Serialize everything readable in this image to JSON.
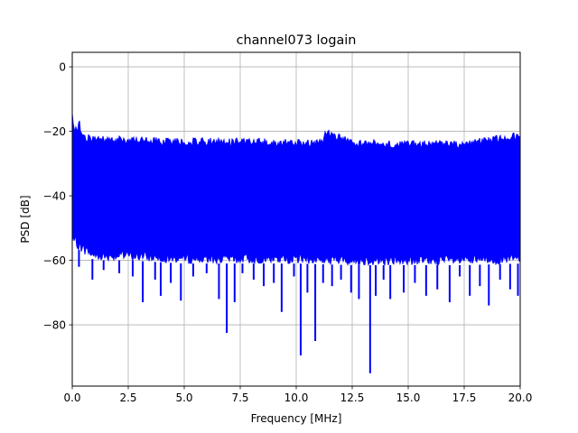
{
  "chart_data": {
    "type": "line",
    "title": "channel073 logain",
    "xlabel": "Frequency [MHz]",
    "ylabel": "PSD [dB]",
    "xlim": [
      0,
      20
    ],
    "ylim": [
      -99,
      4.5
    ],
    "x_ticks": [
      0,
      2.5,
      5,
      7.5,
      10,
      12.5,
      15,
      17.5,
      20
    ],
    "x_tick_labels": [
      "0.0",
      "2.5",
      "5.0",
      "7.5",
      "10.0",
      "12.5",
      "15.0",
      "17.5",
      "20.0"
    ],
    "y_ticks": [
      0,
      -20,
      -40,
      -60,
      -80
    ],
    "y_tick_labels": [
      "0",
      "−20",
      "−40",
      "−60",
      "−80"
    ],
    "grid": true,
    "series": [
      {
        "color": "#0000ff",
        "envelope_upper": {
          "x": [
            0,
            0.05,
            0.2,
            0.3,
            0.5,
            1,
            2,
            3,
            4,
            5,
            7.5,
            10,
            11.2,
            11.3,
            12.5,
            15,
            17.5,
            20
          ],
          "y": [
            -13,
            -17,
            -19,
            -16,
            -21,
            -21,
            -21.5,
            -21.5,
            -22,
            -22,
            -22,
            -22.5,
            -22.5,
            -19,
            -22.5,
            -22.8,
            -22.8,
            -20
          ]
        },
        "envelope_lower": {
          "x": [
            0,
            0.5,
            1,
            2.5,
            5,
            7.5,
            10,
            12.5,
            15,
            17.5,
            20
          ],
          "y": [
            -55,
            -58,
            -60,
            -60,
            -61,
            -61,
            -61,
            -61.5,
            -61.5,
            -61.5,
            -61
          ]
        },
        "dips": [
          {
            "x": 0.3,
            "y": -62
          },
          {
            "x": 0.9,
            "y": -66
          },
          {
            "x": 1.4,
            "y": -63
          },
          {
            "x": 2.1,
            "y": -64
          },
          {
            "x": 2.7,
            "y": -65
          },
          {
            "x": 3.15,
            "y": -73
          },
          {
            "x": 3.7,
            "y": -66
          },
          {
            "x": 3.95,
            "y": -71
          },
          {
            "x": 4.4,
            "y": -67
          },
          {
            "x": 4.85,
            "y": -72.5
          },
          {
            "x": 5.4,
            "y": -65
          },
          {
            "x": 6.0,
            "y": -64
          },
          {
            "x": 6.55,
            "y": -72
          },
          {
            "x": 6.9,
            "y": -82.5
          },
          {
            "x": 7.25,
            "y": -73
          },
          {
            "x": 7.6,
            "y": -64
          },
          {
            "x": 8.1,
            "y": -66
          },
          {
            "x": 8.55,
            "y": -68
          },
          {
            "x": 9.0,
            "y": -67
          },
          {
            "x": 9.35,
            "y": -76
          },
          {
            "x": 9.9,
            "y": -65
          },
          {
            "x": 10.2,
            "y": -89.5
          },
          {
            "x": 10.5,
            "y": -70
          },
          {
            "x": 10.85,
            "y": -85
          },
          {
            "x": 11.2,
            "y": -67
          },
          {
            "x": 11.6,
            "y": -68
          },
          {
            "x": 12.0,
            "y": -66
          },
          {
            "x": 12.45,
            "y": -70
          },
          {
            "x": 12.8,
            "y": -72
          },
          {
            "x": 13.3,
            "y": -95
          },
          {
            "x": 13.55,
            "y": -71
          },
          {
            "x": 13.9,
            "y": -66
          },
          {
            "x": 14.2,
            "y": -72
          },
          {
            "x": 14.8,
            "y": -70
          },
          {
            "x": 15.3,
            "y": -67
          },
          {
            "x": 15.8,
            "y": -71
          },
          {
            "x": 16.3,
            "y": -69
          },
          {
            "x": 16.85,
            "y": -73
          },
          {
            "x": 17.3,
            "y": -65
          },
          {
            "x": 17.75,
            "y": -71
          },
          {
            "x": 18.2,
            "y": -68
          },
          {
            "x": 18.6,
            "y": -74
          },
          {
            "x": 19.1,
            "y": -66
          },
          {
            "x": 19.55,
            "y": -69
          },
          {
            "x": 19.9,
            "y": -71
          }
        ]
      }
    ]
  }
}
